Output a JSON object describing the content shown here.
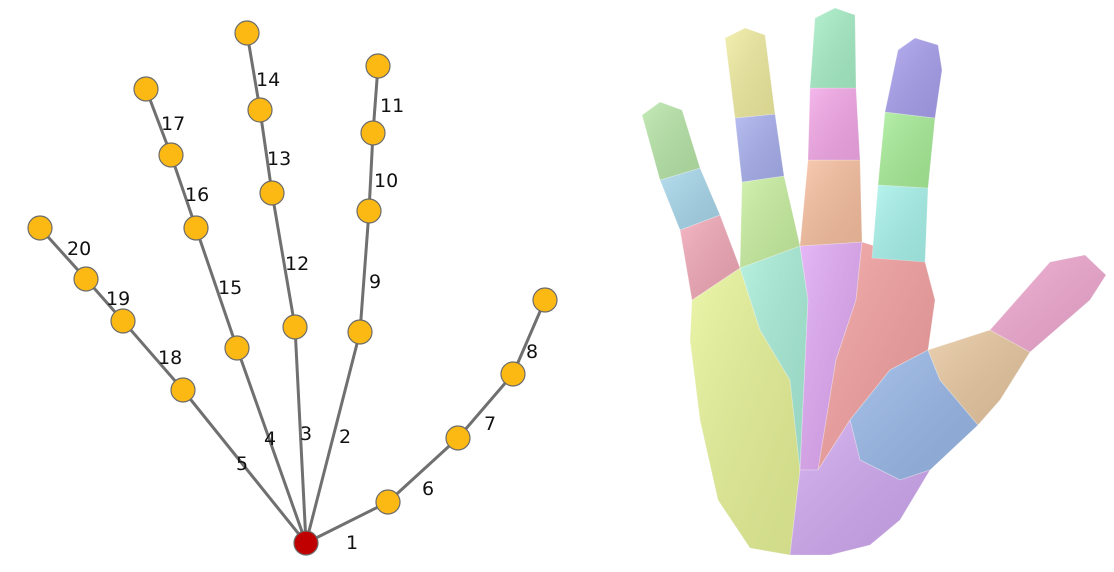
{
  "skeleton": {
    "joint_color": "#FDB913",
    "root_color": "#C00000",
    "bone_color": "#707070",
    "bones": [
      {
        "label": "1"
      },
      {
        "label": "2"
      },
      {
        "label": "3"
      },
      {
        "label": "4"
      },
      {
        "label": "5"
      },
      {
        "label": "6"
      },
      {
        "label": "7"
      },
      {
        "label": "8"
      },
      {
        "label": "9"
      },
      {
        "label": "10"
      },
      {
        "label": "11"
      },
      {
        "label": "12"
      },
      {
        "label": "13"
      },
      {
        "label": "14"
      },
      {
        "label": "15"
      },
      {
        "label": "16"
      },
      {
        "label": "17"
      },
      {
        "label": "18"
      },
      {
        "label": "19"
      },
      {
        "label": "20"
      }
    ]
  },
  "hand_mesh": {
    "segment_colors": [
      "#B8E6A8",
      "#A8D8EC",
      "#F2A8B8",
      "#F0ECA0",
      "#A8B0EE",
      "#C8F0A0",
      "#A8EED8",
      "#F4A8E8",
      "#F8C0A0",
      "#A8A0EE",
      "#A8EE98",
      "#A8F4EC",
      "#E8F498",
      "#A8F0C8",
      "#E0A8F4",
      "#F4A0A0",
      "#F0A8D0",
      "#E8C8A0",
      "#98B8E8",
      "#D0A8F0",
      "#C0E098"
    ]
  }
}
